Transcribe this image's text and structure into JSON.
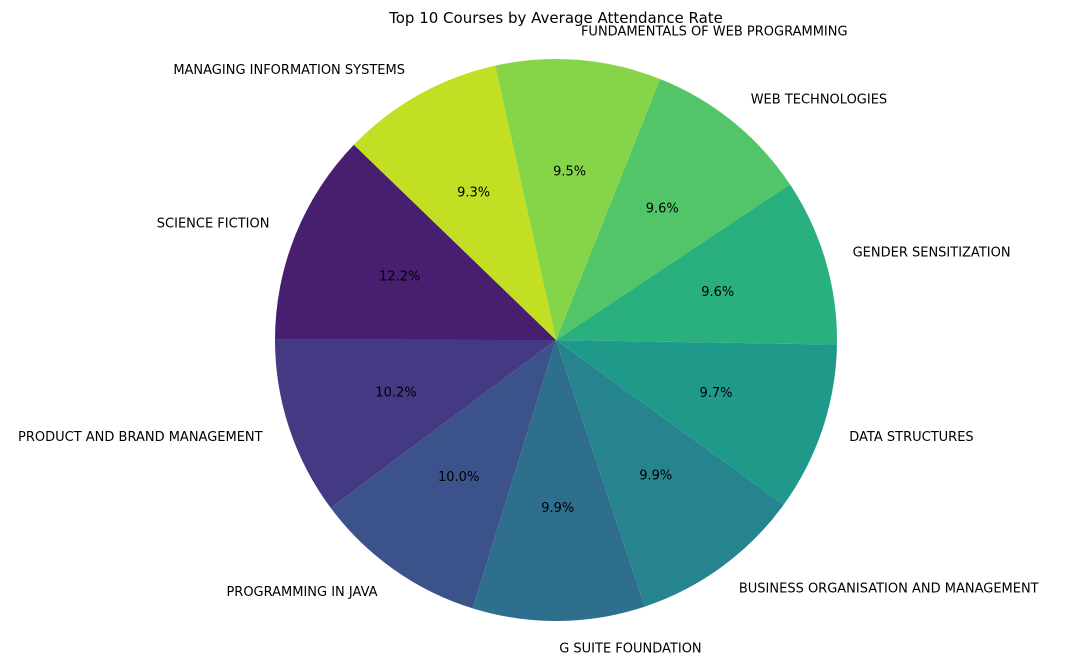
{
  "chart_data": {
    "type": "pie",
    "title": "Top 10 Courses by Average Attendance Rate",
    "start_angle_deg": 136,
    "direction": "counterclockwise",
    "slices": [
      {
        "label": "SCIENCE FICTION",
        "value": 12.2,
        "pct_text": "12.2%",
        "color": "#481f70"
      },
      {
        "label": "PRODUCT AND BRAND MANAGEMENT",
        "value": 10.2,
        "pct_text": "10.2%",
        "color": "#443983"
      },
      {
        "label": "PROGRAMMING IN JAVA",
        "value": 10.0,
        "pct_text": "10.0%",
        "color": "#3b528b"
      },
      {
        "label": "G SUITE FOUNDATION",
        "value": 9.9,
        "pct_text": "9.9%",
        "color": "#2e6f8e"
      },
      {
        "label": "BUSINESS ORGANISATION AND MANAGEMENT",
        "value": 9.9,
        "pct_text": "9.9%",
        "color": "#25848e"
      },
      {
        "label": "DATA STRUCTURES",
        "value": 9.7,
        "pct_text": "9.7%",
        "color": "#1f9a8a"
      },
      {
        "label": "GENDER SENSITIZATION",
        "value": 9.6,
        "pct_text": "9.6%",
        "color": "#2ab07f"
      },
      {
        "label": "WEB TECHNOLOGIES",
        "value": 9.6,
        "pct_text": "9.6%",
        "color": "#52c569"
      },
      {
        "label": "FUNDAMENTALS OF WEB PROGRAMMING",
        "value": 9.5,
        "pct_text": "9.5%",
        "color": "#86d549"
      },
      {
        "label": "MANAGING INFORMATION SYSTEMS",
        "value": 9.3,
        "pct_text": "9.3%",
        "color": "#c2df23"
      }
    ]
  }
}
